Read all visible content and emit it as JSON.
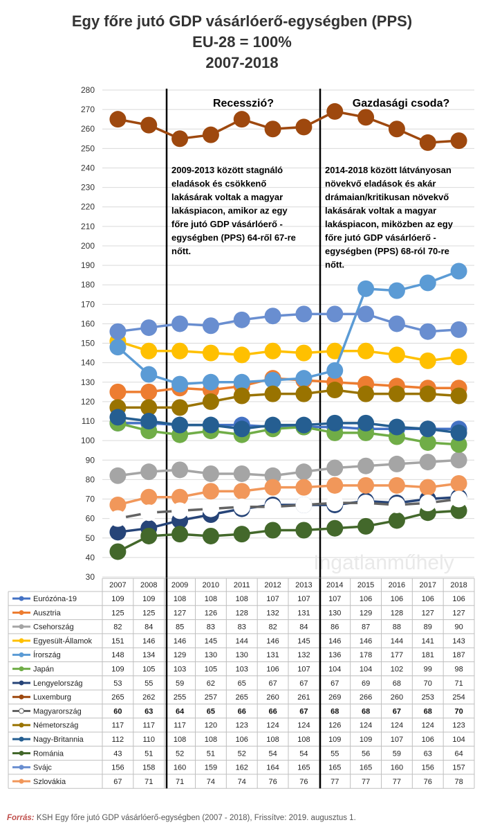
{
  "title_lines": [
    "Egy főre jutó GDP vásárlóerő-egységben (PPS)",
    "EU-28 = 100%",
    "2007-2018"
  ],
  "annotations": {
    "left_heading": "Recesszió?",
    "right_heading": "Gazdasági csoda?",
    "left_text": [
      "2009-2013 között stagnáló",
      "eladások és csökkenő",
      "lakásárak voltak a magyar",
      "lakáspiacon, amikor az egy",
      "főre jutó GDP vásárlóerő -",
      "egységben (PPS) 64-ről 67-re",
      "nőtt."
    ],
    "right_text": [
      "2014-2018 között látványosan",
      "növekvő eladások és akár",
      "drámaian/kritikusan növekvő",
      "lakásárak voltak a magyar",
      "lakáspiacon, miközben az egy",
      "főre jutó GDP vásárlóerő -",
      "egységben (PPS) 68-ról 70-re",
      "nőtt."
    ]
  },
  "watermark": "Ingatlanműhely",
  "source": {
    "label": "Forrás:",
    "text": " KSH Egy főre jutó GDP vásárlóerő-egységben (2007 - 2018), Frissítve: 2019. augusztus 1."
  },
  "chart_data": {
    "type": "line",
    "title": "Egy főre jutó GDP vásárlóerő-egységben (PPS) EU-28 = 100% 2007-2018",
    "x": [
      "2007",
      "2008",
      "2009",
      "2010",
      "2011",
      "2012",
      "2013",
      "2014",
      "2015",
      "2016",
      "2017",
      "2018"
    ],
    "ylim": [
      30,
      280
    ],
    "yticks": [
      30,
      40,
      50,
      60,
      70,
      80,
      90,
      100,
      110,
      120,
      130,
      140,
      150,
      160,
      170,
      180,
      190,
      200,
      210,
      220,
      230,
      240,
      250,
      260,
      270,
      280
    ],
    "grid": true,
    "legend": "data table below chart",
    "highlight_series": "Magyarország",
    "series": [
      {
        "name": "Eurózóna-19",
        "color": "#4472c4",
        "values": [
          109,
          109,
          108,
          108,
          108,
          107,
          107,
          107,
          106,
          106,
          106,
          106
        ]
      },
      {
        "name": "Ausztria",
        "color": "#ed7d31",
        "values": [
          125,
          125,
          127,
          126,
          128,
          132,
          131,
          130,
          129,
          128,
          127,
          127
        ]
      },
      {
        "name": "Csehország",
        "color": "#a5a5a5",
        "values": [
          82,
          84,
          85,
          83,
          83,
          82,
          84,
          86,
          87,
          88,
          89,
          90
        ]
      },
      {
        "name": "Egyesült-Államok",
        "color": "#ffc000",
        "values": [
          151,
          146,
          146,
          145,
          144,
          146,
          145,
          146,
          146,
          144,
          141,
          143
        ]
      },
      {
        "name": "Írország",
        "color": "#5b9bd5",
        "values": [
          148,
          134,
          129,
          130,
          130,
          131,
          132,
          136,
          178,
          177,
          181,
          187
        ]
      },
      {
        "name": "Japán",
        "color": "#70ad47",
        "values": [
          109,
          105,
          103,
          105,
          103,
          106,
          107,
          104,
          104,
          102,
          99,
          98
        ]
      },
      {
        "name": "Lengyelország",
        "color": "#264478",
        "values": [
          53,
          55,
          59,
          62,
          65,
          67,
          67,
          67,
          69,
          68,
          70,
          71
        ]
      },
      {
        "name": "Luxemburg",
        "color": "#9e480e",
        "values": [
          265,
          262,
          255,
          257,
          265,
          260,
          261,
          269,
          266,
          260,
          253,
          254
        ]
      },
      {
        "name": "Magyarország",
        "color": "#636363",
        "marker": "#ffffff",
        "values": [
          60,
          63,
          64,
          65,
          66,
          66,
          67,
          68,
          68,
          67,
          68,
          70
        ]
      },
      {
        "name": "Németország",
        "color": "#997300",
        "values": [
          117,
          117,
          117,
          120,
          123,
          124,
          124,
          126,
          124,
          124,
          124,
          123
        ]
      },
      {
        "name": "Nagy-Britannia",
        "color": "#255e91",
        "values": [
          112,
          110,
          108,
          108,
          106,
          108,
          108,
          109,
          109,
          107,
          106,
          104
        ]
      },
      {
        "name": "Románia",
        "color": "#43682b",
        "values": [
          43,
          51,
          52,
          51,
          52,
          54,
          54,
          55,
          56,
          59,
          63,
          64
        ]
      },
      {
        "name": "Svájc",
        "color": "#698ed0",
        "values": [
          156,
          158,
          160,
          159,
          162,
          164,
          165,
          165,
          165,
          160,
          156,
          157
        ]
      },
      {
        "name": "Szlovákia",
        "color": "#f1975a",
        "values": [
          67,
          71,
          71,
          74,
          74,
          76,
          76,
          77,
          77,
          77,
          76,
          78
        ]
      }
    ]
  }
}
